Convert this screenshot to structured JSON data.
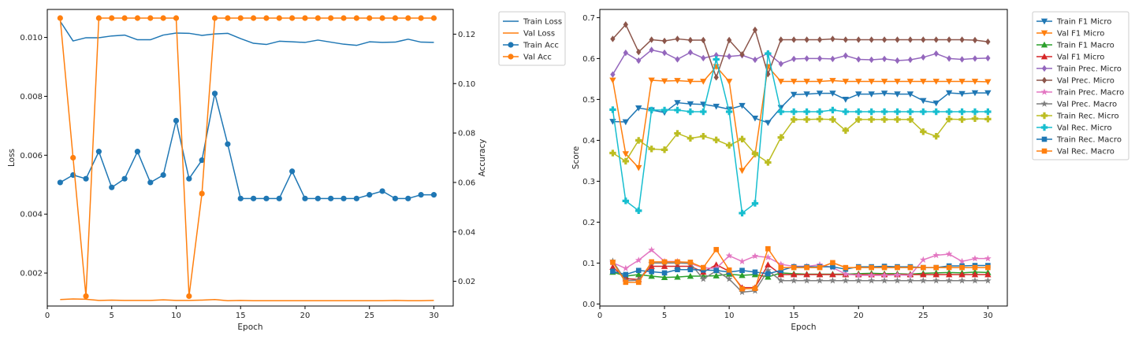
{
  "chart_data": [
    {
      "type": "line",
      "xlabel": "Epoch",
      "ylabel": "Loss",
      "y2label": "Accuracy",
      "grid": false,
      "legend_placement": "outside-top-right",
      "xlim": [
        0,
        31.5
      ],
      "ylim": [
        0.00088,
        0.01095
      ],
      "y2lim": [
        0.01,
        0.13
      ],
      "xticks": [
        "0",
        "5",
        "10",
        "15",
        "20",
        "25",
        "30"
      ],
      "yticks": [
        "0.002",
        "0.004",
        "0.006",
        "0.008",
        "0.010"
      ],
      "y2ticks": [
        "0.02",
        "0.04",
        "0.06",
        "0.08",
        "0.10",
        "0.12"
      ],
      "x": [
        1,
        2,
        3,
        4,
        5,
        6,
        7,
        8,
        9,
        10,
        11,
        12,
        13,
        14,
        15,
        16,
        17,
        18,
        19,
        20,
        21,
        22,
        23,
        24,
        25,
        26,
        27,
        28,
        29,
        30
      ],
      "series": [
        {
          "name": "Train Loss",
          "axis": "left",
          "color": "#1f77b4",
          "marker": "none",
          "values": [
            0.01055,
            0.00988,
            0.00999,
            0.00999,
            0.01005,
            0.01008,
            0.00992,
            0.00992,
            0.01008,
            0.01015,
            0.01014,
            0.01007,
            0.01012,
            0.01014,
            0.00996,
            0.0098,
            0.00976,
            0.00987,
            0.00985,
            0.00983,
            0.00991,
            0.00984,
            0.00977,
            0.00973,
            0.00985,
            0.00983,
            0.00984,
            0.00994,
            0.00984,
            0.00983
          ]
        },
        {
          "name": "Val Loss",
          "axis": "left",
          "color": "#ff7f0e",
          "marker": "none",
          "values": [
            0.0011,
            0.00112,
            0.00111,
            0.00107,
            0.00108,
            0.00107,
            0.00107,
            0.00107,
            0.00109,
            0.00107,
            0.00107,
            0.00108,
            0.0011,
            0.00106,
            0.00107,
            0.00106,
            0.00106,
            0.00106,
            0.00106,
            0.00106,
            0.00106,
            0.00106,
            0.00106,
            0.00106,
            0.00106,
            0.00106,
            0.00107,
            0.00106,
            0.00106,
            0.00107
          ]
        },
        {
          "name": "Train Acc",
          "axis": "right",
          "color": "#1f77b4",
          "marker": "circle",
          "values": [
            0.06,
            0.063,
            0.0615,
            0.0725,
            0.058,
            0.0615,
            0.0725,
            0.06,
            0.063,
            0.085,
            0.0615,
            0.069,
            0.096,
            0.0755,
            0.0535,
            0.0535,
            0.0535,
            0.0535,
            0.0645,
            0.0535,
            0.0535,
            0.0535,
            0.0535,
            0.0535,
            0.055,
            0.0565,
            0.0535,
            0.0535,
            0.055,
            0.055
          ]
        },
        {
          "name": "Val Acc",
          "axis": "right",
          "color": "#ff7f0e",
          "marker": "circle",
          "values": [
            0.1265,
            0.07,
            0.014,
            0.1265,
            0.1265,
            0.1265,
            0.1265,
            0.1265,
            0.1265,
            0.1265,
            0.014,
            0.0555,
            0.1265,
            0.1265,
            0.1265,
            0.1265,
            0.1265,
            0.1265,
            0.1265,
            0.1265,
            0.1265,
            0.1265,
            0.1265,
            0.1265,
            0.1265,
            0.1265,
            0.1265,
            0.1265,
            0.1265,
            0.1265
          ]
        }
      ]
    },
    {
      "type": "line",
      "xlabel": "Epoch",
      "ylabel": "Score",
      "grid": false,
      "legend_placement": "outside-top-right",
      "xlim": [
        0,
        31.5
      ],
      "ylim": [
        -0.005,
        0.72
      ],
      "xticks": [
        "0",
        "5",
        "10",
        "15",
        "20",
        "25",
        "30"
      ],
      "yticks": [
        "0.0",
        "0.1",
        "0.2",
        "0.3",
        "0.4",
        "0.5",
        "0.6",
        "0.7"
      ],
      "x": [
        1,
        2,
        3,
        4,
        5,
        6,
        7,
        8,
        9,
        10,
        11,
        12,
        13,
        14,
        15,
        16,
        17,
        18,
        19,
        20,
        21,
        22,
        23,
        24,
        25,
        26,
        27,
        28,
        29,
        30
      ],
      "series": [
        {
          "name": "Train F1 Micro",
          "color": "#1f77b4",
          "marker": "tri_down",
          "values": [
            0.446,
            0.445,
            0.479,
            0.474,
            0.468,
            0.492,
            0.489,
            0.488,
            0.483,
            0.476,
            0.485,
            0.454,
            0.443,
            0.48,
            0.512,
            0.513,
            0.515,
            0.515,
            0.5,
            0.513,
            0.513,
            0.515,
            0.513,
            0.513,
            0.497,
            0.491,
            0.516,
            0.514,
            0.516,
            0.516
          ]
        },
        {
          "name": "Val F1 Micro",
          "color": "#ff7f0e",
          "marker": "tri_down",
          "values": [
            0.547,
            0.367,
            0.333,
            0.547,
            0.545,
            0.546,
            0.544,
            0.544,
            0.58,
            0.544,
            0.326,
            0.365,
            0.58,
            0.544,
            0.544,
            0.544,
            0.544,
            0.546,
            0.544,
            0.544,
            0.544,
            0.544,
            0.544,
            0.544,
            0.544,
            0.544,
            0.544,
            0.544,
            0.544,
            0.543
          ]
        },
        {
          "name": "Train F1 Macro",
          "color": "#2ca02c",
          "marker": "tri_up",
          "values": [
            0.078,
            0.068,
            0.072,
            0.068,
            0.065,
            0.066,
            0.068,
            0.068,
            0.069,
            0.073,
            0.07,
            0.072,
            0.066,
            0.076,
            0.074,
            0.073,
            0.073,
            0.073,
            0.073,
            0.074,
            0.075,
            0.074,
            0.074,
            0.073,
            0.075,
            0.076,
            0.077,
            0.076,
            0.078,
            0.077
          ]
        },
        {
          "name": "Val F1 Micro",
          "color": "#d62728",
          "marker": "tri_up",
          "values": [
            0.09,
            0.062,
            0.06,
            0.092,
            0.092,
            0.092,
            0.092,
            0.078,
            0.096,
            0.08,
            0.04,
            0.04,
            0.096,
            0.072,
            0.072,
            0.072,
            0.072,
            0.072,
            0.072,
            0.072,
            0.072,
            0.072,
            0.072,
            0.072,
            0.072,
            0.072,
            0.072,
            0.072,
            0.072,
            0.072
          ]
        },
        {
          "name": "Train Prec. Micro",
          "color": "#9467bd",
          "marker": "diamond",
          "values": [
            0.561,
            0.614,
            0.595,
            0.621,
            0.614,
            0.598,
            0.615,
            0.601,
            0.608,
            0.605,
            0.608,
            0.597,
            0.613,
            0.587,
            0.599,
            0.6,
            0.6,
            0.599,
            0.607,
            0.598,
            0.597,
            0.599,
            0.595,
            0.597,
            0.603,
            0.612,
            0.6,
            0.598,
            0.6,
            0.601
          ]
        },
        {
          "name": "Val Prec. Micro",
          "color": "#8c564b",
          "marker": "diamond",
          "values": [
            0.648,
            0.683,
            0.616,
            0.646,
            0.643,
            0.648,
            0.645,
            0.645,
            0.554,
            0.645,
            0.61,
            0.67,
            0.562,
            0.646,
            0.646,
            0.646,
            0.646,
            0.648,
            0.646,
            0.646,
            0.646,
            0.646,
            0.646,
            0.646,
            0.646,
            0.646,
            0.646,
            0.646,
            0.645,
            0.641
          ]
        },
        {
          "name": "Train Prec. Macro",
          "color": "#e377c2",
          "marker": "star",
          "values": [
            0.101,
            0.087,
            0.107,
            0.132,
            0.104,
            0.104,
            0.099,
            0.088,
            0.087,
            0.118,
            0.104,
            0.117,
            0.114,
            0.097,
            0.092,
            0.092,
            0.096,
            0.089,
            0.073,
            0.07,
            0.07,
            0.07,
            0.071,
            0.07,
            0.108,
            0.119,
            0.122,
            0.104,
            0.111,
            0.111
          ]
        },
        {
          "name": "Val Prec. Macro",
          "color": "#7f7f7f",
          "marker": "star",
          "values": [
            0.105,
            0.057,
            0.058,
            0.1,
            0.1,
            0.1,
            0.099,
            0.061,
            0.081,
            0.061,
            0.029,
            0.032,
            0.082,
            0.057,
            0.057,
            0.057,
            0.057,
            0.057,
            0.057,
            0.057,
            0.057,
            0.057,
            0.057,
            0.057,
            0.057,
            0.057,
            0.057,
            0.057,
            0.057,
            0.057
          ]
        },
        {
          "name": "Train Rec. Micro",
          "color": "#bcbd22",
          "marker": "plus",
          "values": [
            0.369,
            0.349,
            0.4,
            0.379,
            0.377,
            0.417,
            0.405,
            0.41,
            0.401,
            0.388,
            0.403,
            0.367,
            0.346,
            0.407,
            0.451,
            0.451,
            0.452,
            0.451,
            0.424,
            0.451,
            0.451,
            0.451,
            0.451,
            0.451,
            0.421,
            0.41,
            0.452,
            0.451,
            0.453,
            0.452
          ]
        },
        {
          "name": "Val Rec. Micro",
          "color": "#17becf",
          "marker": "plus",
          "values": [
            0.475,
            0.252,
            0.228,
            0.474,
            0.474,
            0.474,
            0.47,
            0.47,
            0.598,
            0.47,
            0.222,
            0.246,
            0.612,
            0.47,
            0.47,
            0.47,
            0.47,
            0.474,
            0.47,
            0.47,
            0.47,
            0.47,
            0.47,
            0.47,
            0.47,
            0.47,
            0.47,
            0.47,
            0.47,
            0.47
          ]
        },
        {
          "name": "Train Rec. Macro",
          "color": "#1f77b4",
          "marker": "square",
          "values": [
            0.08,
            0.072,
            0.082,
            0.079,
            0.076,
            0.084,
            0.084,
            0.083,
            0.082,
            0.078,
            0.082,
            0.078,
            0.074,
            0.082,
            0.091,
            0.091,
            0.091,
            0.091,
            0.085,
            0.091,
            0.091,
            0.092,
            0.091,
            0.091,
            0.089,
            0.089,
            0.093,
            0.093,
            0.094,
            0.094
          ]
        },
        {
          "name": "Val Rec. Macro",
          "color": "#ff7f0e",
          "marker": "square",
          "values": [
            0.102,
            0.053,
            0.053,
            0.103,
            0.103,
            0.103,
            0.102,
            0.089,
            0.133,
            0.083,
            0.037,
            0.038,
            0.135,
            0.089,
            0.089,
            0.089,
            0.089,
            0.101,
            0.089,
            0.089,
            0.089,
            0.089,
            0.089,
            0.089,
            0.089,
            0.089,
            0.089,
            0.089,
            0.089,
            0.089
          ]
        }
      ]
    }
  ]
}
